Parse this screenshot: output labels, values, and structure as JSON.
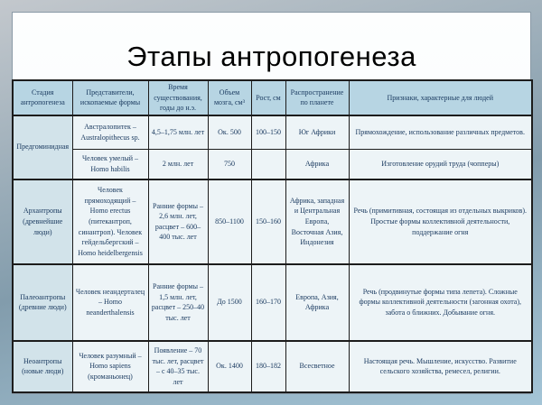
{
  "slide": {
    "title": "Этапы антропогенеза"
  },
  "table": {
    "headers": {
      "stage": "Стадия антропогенеза",
      "representatives": "Представители, ископаемые формы",
      "time": "Время существования, годы до н.э.",
      "brain": "Объем мозга, см³",
      "height": "Рост, см",
      "distribution": "Распространение по планете",
      "features": "Признаки, характерные для людей"
    },
    "rows": [
      {
        "stage": "Предгоминидная",
        "representatives": "Австралопитек – Australopithecus sp.",
        "time": "4,5–1,75 млн. лет",
        "brain": "Ок. 500",
        "height": "100–150",
        "distribution": "Юг Африки",
        "features": "Прямохождение, использование различных предметов."
      },
      {
        "representatives": "Человек умелый – Homo habilis",
        "time": "2 млн. лет",
        "brain": "750",
        "height": "",
        "distribution": "Африка",
        "features": "Изготовление орудий труда (чопперы)"
      },
      {
        "stage": "Архантропы (древнейшие люди)",
        "representatives": "Человек прямоходящий – Homo erectus (питекантроп, синантроп). Человек гейдельбергский – Homo heidelbergensis",
        "time": "Ранние формы – 2,6 млн. лет, расцвет – 600–400 тыс. лет",
        "brain": "850–1100",
        "height": "150–160",
        "distribution": "Африка, западная и Центральная Европа, Восточная Азия, Индонезия",
        "features": "Речь (примитивная, состоящая из отдельных выкриков). Простые формы коллективной деятельности, поддержание огня"
      },
      {
        "stage": "Палеоантропы (древние люди)",
        "representatives": "Человек неандерталец – Homo neanderthalensis",
        "time": "Ранние формы – 1,5 млн. лет, расцвет – 250–40 тыс. лет",
        "brain": "До 1500",
        "height": "160–170",
        "distribution": "Европа, Азия, Африка",
        "features": "Речь (продвинутые формы типа лепета). Сложные формы коллективной деятельности (загонная охота), забота о ближних. Добывание огня."
      },
      {
        "stage": "Неоантропы (новые люди)",
        "representatives": "Человек разумный – Homo sapiens (кроманьонец)",
        "time": "Появление – 70 тыс. лет, расцвет – с 40–35 тыс. лет",
        "brain": "Ок. 1400",
        "height": "180–182",
        "distribution": "Всесветное",
        "features": "Настоящая речь. Мышление, искусство. Развитие сельского хозяйства, ремесел, религии."
      }
    ]
  },
  "colors": {
    "bg_top": "#c3c8cd",
    "bg_mid": "#829cac",
    "bg_bottom": "#a4c5d7",
    "slide_bg": "#fdfefe",
    "header_bg": "#b7d5e3",
    "stage_bg": "#d2e3ea",
    "cell_bg": "#edf4f7",
    "border_color": "#1c1c1c",
    "text_color": "#17375d",
    "title_color": "#000000"
  }
}
